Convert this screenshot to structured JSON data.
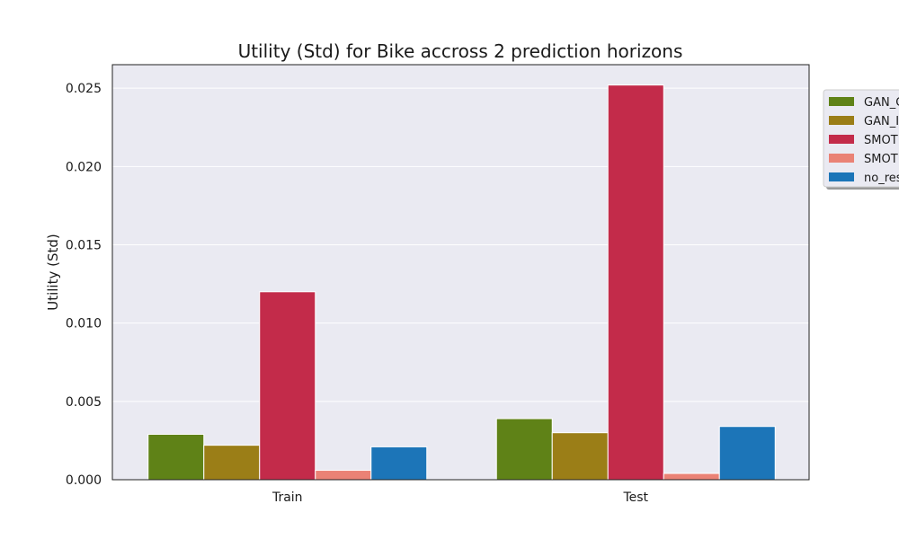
{
  "chart_data": {
    "type": "bar",
    "title": "Utility (Std) for Bike accross 2 prediction horizons",
    "xlabel": "",
    "ylabel": "Utility (Std)",
    "categories": [
      "Train",
      "Test"
    ],
    "ylim": [
      0,
      0.0265
    ],
    "yticks": [
      "0.000",
      "0.005",
      "0.010",
      "0.015",
      "0.020",
      "0.025"
    ],
    "grid": true,
    "legend_position": "right, outside plot (clipped)",
    "series": [
      {
        "name": "GAN_C",
        "color": "#5f8217",
        "values": [
          0.0029,
          0.0039
        ]
      },
      {
        "name": "GAN_I",
        "color": "#9b7e17",
        "values": [
          0.0022,
          0.003
        ]
      },
      {
        "name": "SMOT",
        "color": "#c32b4a",
        "values": [
          0.012,
          0.0252
        ]
      },
      {
        "name": "SMOT",
        "color": "#ea8275",
        "values": [
          0.0006,
          0.0004
        ]
      },
      {
        "name": "no_res",
        "color": "#1c75b8",
        "values": [
          0.0021,
          0.0034
        ]
      }
    ]
  }
}
